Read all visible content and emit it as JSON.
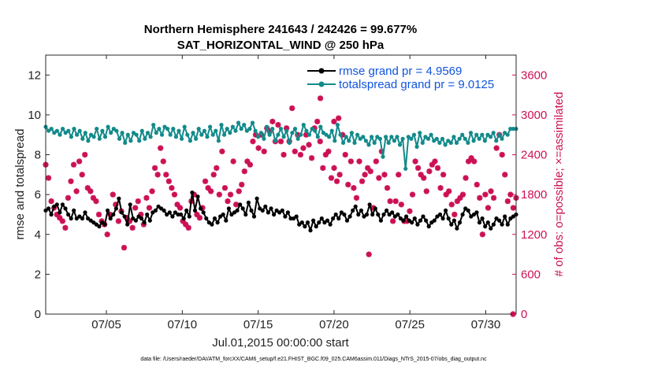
{
  "chart_data": {
    "type": "line",
    "title_line1": "Northern Hemisphere 241643 / 242426 = 99.677%",
    "title_line2": "SAT_HORIZONTAL_WIND @ 250 hPa",
    "xlabel": "Jul.01,2015 00:00:00 start",
    "ylabel_left": "rmse and totalspread",
    "ylabel_right": "# of obs: o=possible; ×=assimilated",
    "xlim": [
      1,
      32
    ],
    "ylim_left": [
      0,
      13
    ],
    "ylim_right": [
      0,
      3900
    ],
    "x_ticks": [
      5,
      10,
      15,
      20,
      25,
      30
    ],
    "x_tick_labels": [
      "07/05",
      "07/10",
      "07/15",
      "07/20",
      "07/25",
      "07/30"
    ],
    "y_ticks_left": [
      0,
      2,
      4,
      6,
      8,
      10,
      12
    ],
    "y_ticks_right": [
      0,
      600,
      1200,
      1800,
      2400,
      3000,
      3600
    ],
    "colors": {
      "rmse": "#000000",
      "totalspread": "#138a8a",
      "obs": "#cc1155",
      "legend_text": "#1155dd"
    },
    "series": [
      {
        "name": "rmse grand pr = 4.9569",
        "key": "rmse",
        "values": [
          5.2,
          5.3,
          5.0,
          5.4,
          5.5,
          5.1,
          5.5,
          5.3,
          5.0,
          4.8,
          5.2,
          4.8,
          4.9,
          4.8,
          5.1,
          4.8,
          4.7,
          4.6,
          4.5,
          4.4,
          4.6,
          4.5,
          5.2,
          4.8,
          5.0,
          5.3,
          5.8,
          5.1,
          4.9,
          4.5,
          5.5,
          4.8,
          4.7,
          4.9,
          4.8,
          4.6,
          5.0,
          4.7,
          5.1,
          5.2,
          5.4,
          5.3,
          5.2,
          5.0,
          5.1,
          4.9,
          5.1,
          5.0,
          5.0,
          4.8,
          5.2,
          4.9,
          6.1,
          5.2,
          5.9,
          5.3,
          5.1,
          4.8,
          4.6,
          4.5,
          4.8,
          4.6,
          4.9,
          5.0,
          4.7,
          5.3,
          5.0,
          5.1,
          5.2,
          5.5,
          5.3,
          5.0,
          5.6,
          5.2,
          4.9,
          5.8,
          5.3,
          5.2,
          5.4,
          5.1,
          5.3,
          5.0,
          5.2,
          5.1,
          5.2,
          4.9,
          5.1,
          4.8,
          4.8,
          4.9,
          4.5,
          4.6,
          4.4,
          4.6,
          4.2,
          4.7,
          4.4,
          4.6,
          4.8,
          4.6,
          4.7,
          4.5,
          4.8,
          5.0,
          4.8,
          5.1,
          5.0,
          4.7,
          4.9,
          5.2,
          5.4,
          5.0,
          5.2,
          4.9,
          5.0,
          5.5,
          5.0,
          5.3,
          5.0,
          4.7,
          5.0,
          5.2,
          5.0,
          5.1,
          4.9,
          5.0,
          4.8,
          4.7,
          4.9,
          4.7,
          4.6,
          4.8,
          4.5,
          4.7,
          4.9,
          4.7,
          4.4,
          4.6,
          4.7,
          4.9,
          5.0,
          4.8,
          5.2,
          4.8,
          4.5,
          4.7,
          4.3,
          4.6,
          5.0,
          5.3,
          5.2,
          4.9,
          5.0,
          5.1,
          4.6,
          4.8,
          4.4,
          4.6,
          4.3,
          4.5,
          4.8,
          4.7,
          4.5,
          4.9,
          4.5,
          4.8,
          4.9,
          5.0
        ]
      },
      {
        "name": "totalspread grand pr = 9.0125",
        "key": "totalspread",
        "values": [
          9.4,
          9.2,
          9.3,
          9.1,
          9.2,
          9.0,
          9.3,
          9.1,
          9.2,
          8.9,
          9.3,
          9.0,
          9.2,
          8.8,
          9.1,
          8.7,
          9.0,
          8.9,
          9.3,
          8.8,
          9.2,
          8.9,
          9.4,
          9.1,
          9.3,
          9.2,
          8.8,
          9.1,
          8.6,
          9.0,
          8.7,
          9.1,
          9.0,
          8.7,
          9.2,
          8.8,
          9.1,
          8.9,
          9.5,
          9.1,
          9.3,
          9.0,
          9.4,
          9.3,
          9.0,
          9.3,
          8.9,
          9.2,
          8.8,
          9.4,
          9.0,
          8.7,
          9.1,
          8.8,
          9.3,
          9.0,
          9.2,
          8.9,
          9.4,
          9.0,
          9.2,
          8.7,
          9.5,
          9.0,
          9.3,
          9.1,
          9.4,
          9.2,
          9.6,
          9.3,
          9.5,
          9.2,
          9.3,
          9.6,
          9.2,
          8.9,
          9.1,
          8.8,
          9.4,
          9.0,
          9.3,
          8.7,
          9.0,
          9.3,
          8.9,
          9.2,
          8.6,
          9.1,
          9.3,
          8.8,
          9.0,
          9.5,
          9.2,
          9.0,
          9.3,
          9.2,
          8.9,
          9.4,
          9.1,
          9.0,
          8.9,
          9.2,
          8.7,
          9.5,
          9.0,
          8.6,
          8.9,
          8.7,
          9.1,
          8.6,
          9.0,
          8.8,
          8.9,
          8.7,
          8.5,
          8.9,
          8.6,
          8.9,
          8.8,
          7.9,
          8.9,
          8.6,
          8.9,
          8.7,
          8.9,
          8.5,
          8.8,
          7.3,
          8.9,
          8.8,
          9.0,
          8.4,
          9.1,
          8.6,
          8.9,
          8.8,
          9.0,
          8.7,
          8.8,
          8.6,
          8.8,
          8.5,
          8.7,
          8.6,
          8.9,
          8.6,
          8.8,
          9.0,
          8.8,
          8.6,
          9.1,
          8.7,
          9.0,
          8.8,
          9.0,
          8.7,
          9.0,
          8.9,
          9.1,
          8.7,
          9.0,
          8.8,
          9.1,
          9.0,
          9.3,
          9.3,
          9.3
        ]
      }
    ],
    "obs_series": {
      "name": "# of obs (assimilated)",
      "key": "obs",
      "values": [
        2250,
        2050,
        1700,
        1600,
        1500,
        1450,
        1400,
        1300,
        1750,
        2000,
        2250,
        1850,
        2300,
        2100,
        2400,
        1900,
        1850,
        1750,
        1700,
        1500,
        1400,
        1350,
        1200,
        1500,
        1800,
        1650,
        1400,
        1550,
        1000,
        1450,
        1400,
        1300,
        1600,
        1700,
        1500,
        1350,
        1750,
        1600,
        1850,
        2200,
        2100,
        2500,
        2300,
        2100,
        2000,
        1900,
        1800,
        1650,
        1600,
        1400,
        1350,
        1300,
        1700,
        1800,
        1500,
        1450,
        1600,
        2000,
        1900,
        1850,
        2100,
        2200,
        1800,
        2450,
        1900,
        1700,
        1800,
        2300,
        1650,
        1850,
        1950,
        2150,
        2300,
        2250,
        2600,
        2700,
        2500,
        2700,
        2450,
        2800,
        2750,
        2900,
        2600,
        2850,
        2600,
        2400,
        2800,
        2600,
        3100,
        2450,
        2700,
        2400,
        2500,
        2700,
        2550,
        2350,
        2800,
        2900,
        2600,
        2200,
        2400,
        2450,
        2050,
        2200,
        2000,
        2100,
        2700,
        2400,
        1950,
        2300,
        1900,
        1750,
        2300,
        2000,
        2100,
        2200,
        2150,
        1600,
        2300,
        2050,
        2450,
        2100,
        1900,
        1700,
        1400,
        1700,
        2100,
        1650,
        1400,
        1400,
        1550,
        1800,
        2300,
        2200,
        2100,
        2050,
        1850,
        2150,
        2250,
        2300,
        2200,
        1900,
        2100,
        1800,
        1850,
        1650,
        1500,
        1700,
        1750,
        1800,
        2050,
        2300,
        2350,
        2300,
        1950,
        1750,
        1200,
        1800,
        1600,
        1850,
        1750,
        2500,
        2700,
        2400,
        2100,
        1700,
        1800,
        1600,
        1750
      ]
    },
    "obs_outliers": [
      {
        "x": 19.1,
        "value": 3250
      },
      {
        "x": 20.0,
        "value": 2900
      },
      {
        "x": 20.3,
        "value": 2950
      },
      {
        "x": 22.3,
        "value": 900
      },
      {
        "x": 31.8,
        "value": 0
      }
    ]
  },
  "footnote": "data file: /Users/raeder/DAI/ATM_forcXX/CAM6_setup/f.e21.FHIST_BGC.f09_025.CAM6assim.011/Diags_NTrS_2015-07/obs_diag_output.nc"
}
